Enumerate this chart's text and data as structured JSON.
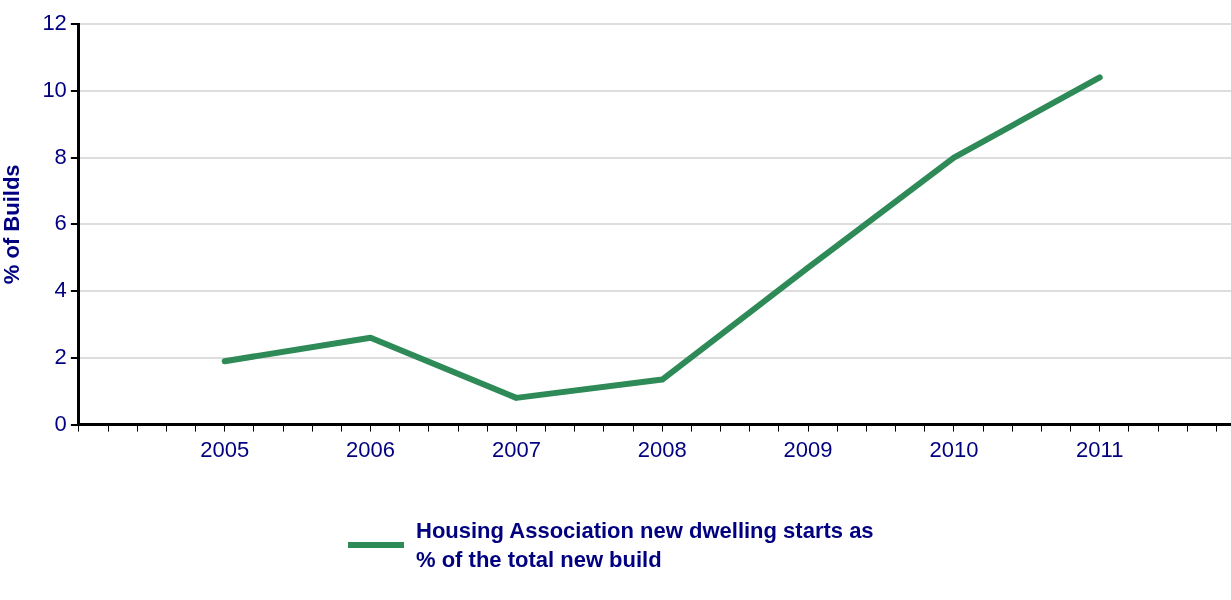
{
  "chart_data": {
    "type": "line",
    "ylabel": "% of Builds",
    "x": [
      2005,
      2006,
      2007,
      2008,
      2009,
      2010,
      2011
    ],
    "series": [
      {
        "name": "Housing Association new dwelling starts as % of the total new build",
        "color": "#2e8b57",
        "values": [
          1.9,
          2.6,
          0.8,
          1.35,
          4.7,
          8.0,
          10.4
        ]
      }
    ],
    "xlim": [
      2004,
      2011.9
    ],
    "xticks": [
      {
        "value": 2004,
        "label": null
      },
      {
        "value": 2004.2,
        "label": null
      },
      {
        "value": 2004.4,
        "label": null
      },
      {
        "value": 2004.6,
        "label": null
      },
      {
        "value": 2004.8,
        "label": null
      },
      2005,
      {
        "value": 2005.2,
        "label": null
      },
      {
        "value": 2005.4,
        "label": null
      },
      {
        "value": 2005.6,
        "label": null
      },
      {
        "value": 2005.8,
        "label": null
      },
      2006,
      {
        "value": 2006.2,
        "label": null
      },
      {
        "value": 2006.4,
        "label": null
      },
      {
        "value": 2006.6,
        "label": null
      },
      {
        "value": 2006.8,
        "label": null
      },
      2007,
      {
        "value": 2007.2,
        "label": null
      },
      {
        "value": 2007.4,
        "label": null
      },
      {
        "value": 2007.6,
        "label": null
      },
      {
        "value": 2007.8,
        "label": null
      },
      2008,
      {
        "value": 2008.2,
        "label": null
      },
      {
        "value": 2008.4,
        "label": null
      },
      {
        "value": 2008.6,
        "label": null
      },
      {
        "value": 2008.8,
        "label": null
      },
      2009,
      {
        "value": 2009.2,
        "label": null
      },
      {
        "value": 2009.4,
        "label": null
      },
      {
        "value": 2009.6,
        "label": null
      },
      {
        "value": 2009.8,
        "label": null
      },
      2010,
      {
        "value": 2010.2,
        "label": null
      },
      {
        "value": 2010.4,
        "label": null
      },
      {
        "value": 2010.6,
        "label": null
      },
      {
        "value": 2010.8,
        "label": null
      },
      2011,
      {
        "value": 2011.2,
        "label": null
      },
      {
        "value": 2011.4,
        "label": null
      },
      {
        "value": 2011.6,
        "label": null
      },
      {
        "value": 2011.8,
        "label": null
      }
    ],
    "ylim": [
      0,
      12
    ],
    "yticks": [
      0,
      2,
      4,
      6,
      8,
      10,
      12
    ],
    "grid": "y",
    "legend": "bottom",
    "marker": "none",
    "line_style": "solid"
  }
}
